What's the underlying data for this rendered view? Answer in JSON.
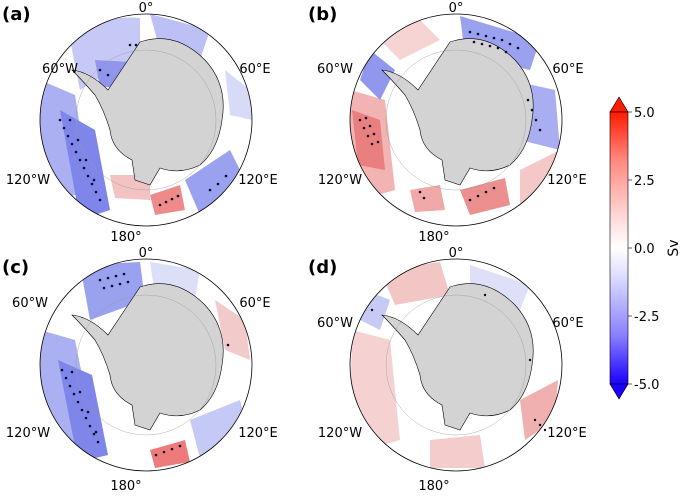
{
  "panels": [
    {
      "label": "(a)",
      "lon_labels": {
        "top": "0°",
        "left": "60°W",
        "right": "60°E",
        "lower_left": "120°W",
        "lower_right": "120°E",
        "bottom": "180°"
      }
    },
    {
      "label": "(b)",
      "lon_labels": {
        "top": "0°",
        "left": "60°W",
        "right": "60°E",
        "lower_left": "120°W",
        "lower_right": "120°E",
        "bottom": "180°"
      }
    },
    {
      "label": "(c)",
      "lon_labels": {
        "top": "0°",
        "left": "60°W",
        "right": "60°E",
        "lower_left": "120°W",
        "lower_right": "120°E",
        "bottom": "180°"
      }
    },
    {
      "label": "(d)",
      "lon_labels": {
        "top": "0°",
        "left": "60°W",
        "right": "60°E",
        "lower_left": "120°W",
        "lower_right": "120°E",
        "bottom": "180°"
      }
    }
  ],
  "colorbar": {
    "unit": "Sv",
    "min": -5.0,
    "max": 5.0,
    "ticks": [
      "5.0",
      "2.5",
      "0.0",
      "-2.5",
      "-5.0"
    ],
    "colors": {
      "max": "#ff1a00",
      "mid": "#ffffff",
      "min": "#1a00ff"
    }
  },
  "colors": {
    "land": "#d3d3d3",
    "stipple": "#0d0d2a",
    "outline": "#000000"
  }
}
